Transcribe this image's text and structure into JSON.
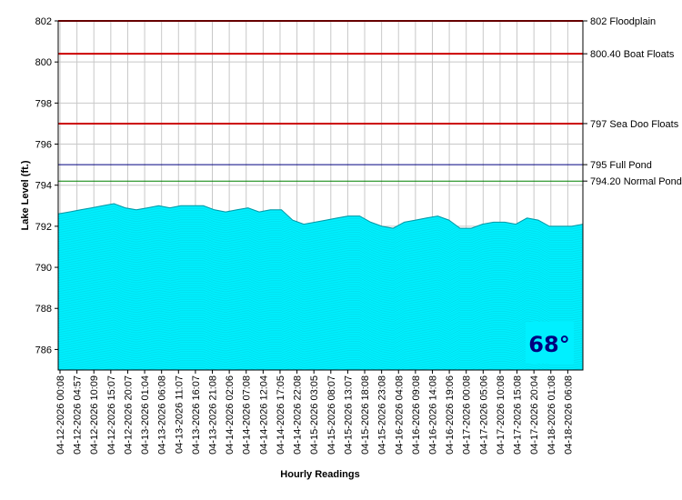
{
  "chart_data": {
    "type": "area",
    "xlabel": "Hourly Readings",
    "ylabel": "Lake Level (ft.)",
    "ylim": [
      785,
      802
    ],
    "yticks": [
      786,
      788,
      790,
      792,
      794,
      796,
      798,
      800,
      802
    ],
    "grid": true,
    "x_tick_labels": [
      "04-12-2026 00:08",
      "04-12-2026 04:57",
      "04-12-2026 10:09",
      "04-12-2026 15:07",
      "04-12-2026 20:07",
      "04-13-2026 01:04",
      "04-13-2026 06:08",
      "04-13-2026 11:07",
      "04-13-2026 16:07",
      "04-13-2026 21:08",
      "04-14-2026 02:06",
      "04-14-2026 07:08",
      "04-14-2026 12:04",
      "04-14-2026 17:05",
      "04-14-2026 22:08",
      "04-15-2026 03:05",
      "04-15-2026 08:07",
      "04-15-2026 13:07",
      "04-15-2026 18:08",
      "04-15-2026 23:08",
      "04-16-2026 04:08",
      "04-16-2026 09:08",
      "04-16-2026 14:08",
      "04-16-2026 19:06",
      "04-17-2026 00:08",
      "04-17-2026 05:06",
      "04-17-2026 10:08",
      "04-17-2026 15:08",
      "04-17-2026 20:04",
      "04-18-2026 01:08",
      "04-18-2026 06:08"
    ],
    "series": [
      {
        "color": "#00f0ff",
        "values": [
          792.6,
          792.7,
          792.8,
          792.9,
          793.0,
          793.1,
          792.9,
          792.8,
          792.9,
          793.0,
          792.9,
          793.0,
          793.0,
          793.0,
          792.8,
          792.7,
          792.8,
          792.9,
          792.7,
          792.8,
          792.8,
          792.3,
          792.1,
          792.2,
          792.3,
          792.4,
          792.5,
          792.5,
          792.2,
          792.0,
          791.9,
          792.2,
          792.3,
          792.4,
          792.5,
          792.3,
          791.9,
          791.9,
          792.1,
          792.2,
          792.2,
          792.1,
          792.4,
          792.3,
          792.0,
          792.0,
          792.0,
          792.1
        ]
      }
    ],
    "reference_lines": [
      {
        "value": 802,
        "label": "802 Floodplain",
        "color": "#cc0000"
      },
      {
        "value": 800.4,
        "label": "800.40 Boat Floats",
        "color": "#cc0000"
      },
      {
        "value": 797,
        "label": "797 Sea Doo Floats",
        "color": "#cc0000"
      },
      {
        "value": 795,
        "label": "795 Full Pond",
        "color": "#000080"
      },
      {
        "value": 794.2,
        "label": "794.20 Normal Pond",
        "color": "#008000"
      }
    ]
  },
  "badge": {
    "text": "68°",
    "bg": "#00f0ff",
    "color": "#000080"
  }
}
